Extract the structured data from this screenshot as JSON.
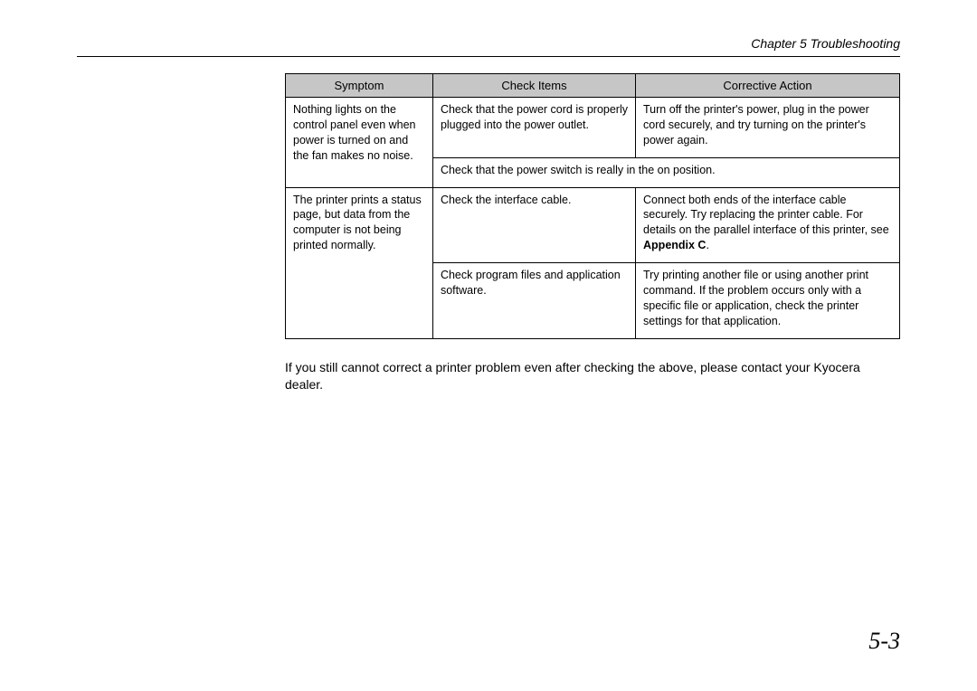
{
  "header": {
    "chapter_label": "Chapter 5  Troubleshooting"
  },
  "table": {
    "columns": [
      "Symptom",
      "Check Items",
      "Corrective Action"
    ],
    "col_widths_pct": [
      24,
      33,
      43
    ],
    "header_bg": "#c6c6c6",
    "border_color": "#000000",
    "body_fontsize": 12.5,
    "header_fontsize": 13,
    "rows": {
      "r1": {
        "symptom": "Nothing lights on the control panel even when power is turned on and the fan makes no noise.",
        "check": "Check that the power cord is properly plugged into the power outlet.",
        "action": "Turn off the printer's power, plug in the power cord securely, and try turning on the printer's power again."
      },
      "r2": {
        "check_span": "Check that the power switch is really in the on position."
      },
      "r3": {
        "symptom": "The printer prints a status page, but data from the computer is not being printed normally.",
        "check": "Check the interface cable.",
        "action_prefix": "Connect both ends of the interface cable securely. Try replacing the printer cable. For details on the parallel interface of this printer, see ",
        "action_bold": "Appendix C",
        "action_suffix": "."
      },
      "r4": {
        "check": "Check program files and application software.",
        "action": "Try printing another file or using another print command. If the problem occurs only with a specific file or application, check the printer settings for that application."
      }
    }
  },
  "note": "If you still cannot correct a printer problem even after checking the above, please contact your Kyocera dealer.",
  "page_number": "5-3",
  "style": {
    "page_bg": "#ffffff",
    "text_color": "#000000",
    "page_number_fontsize": 26,
    "note_fontsize": 14,
    "header_fontsize": 14
  }
}
